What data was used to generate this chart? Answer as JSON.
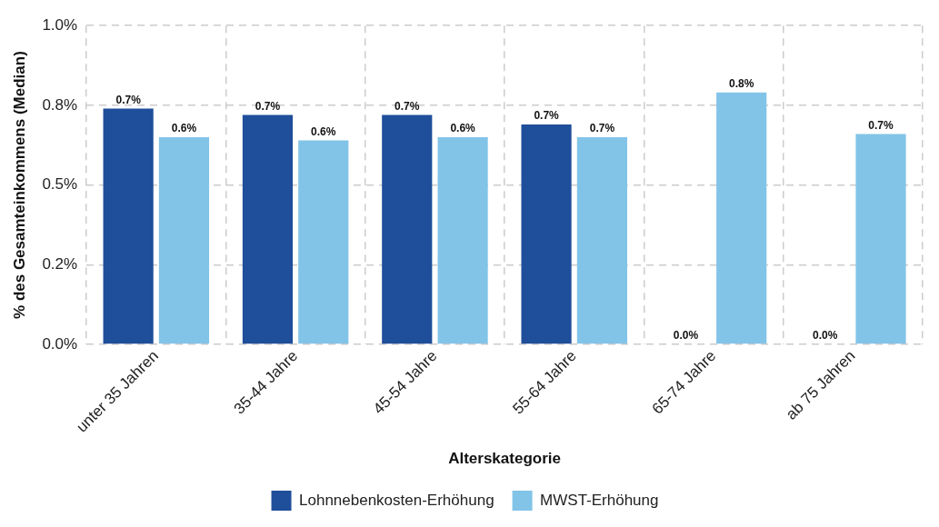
{
  "chart_data": {
    "type": "bar",
    "xlabel": "Alterskategorie",
    "ylabel": "% des Gesamteinkommens (Median)",
    "categories": [
      "unter 35 Jahren",
      "35-44 Jahre",
      "45-54 Jahre",
      "55-64 Jahre",
      "65-74 Jahre",
      "ab 75 Jahren"
    ],
    "series": [
      {
        "name": "Lohnnebenkosten-Erhöhung",
        "color": "#1f4e9a",
        "values": [
          0.74,
          0.72,
          0.72,
          0.69,
          0,
          0
        ],
        "value_labels": [
          "0.7%",
          "0.7%",
          "0.7%",
          "0.7%",
          "0.0%",
          "0.0%"
        ]
      },
      {
        "name": "MWST-Erhöhung",
        "color": "#82c4e8",
        "values": [
          0.65,
          0.64,
          0.65,
          0.65,
          0.79,
          0.66
        ],
        "value_labels": [
          "0.6%",
          "0.6%",
          "0.6%",
          "0.7%",
          "0.8%",
          "0.7%"
        ]
      }
    ],
    "ylim": [
      0,
      1
    ],
    "yticks": [
      {
        "value": 0,
        "label": "0.0%"
      },
      {
        "value": 0.25,
        "label": "0.2%"
      },
      {
        "value": 0.5,
        "label": "0.5%"
      },
      {
        "value": 0.75,
        "label": "0.8%"
      },
      {
        "value": 1,
        "label": "1.0%"
      }
    ],
    "grid": true,
    "legend": "bottom"
  }
}
